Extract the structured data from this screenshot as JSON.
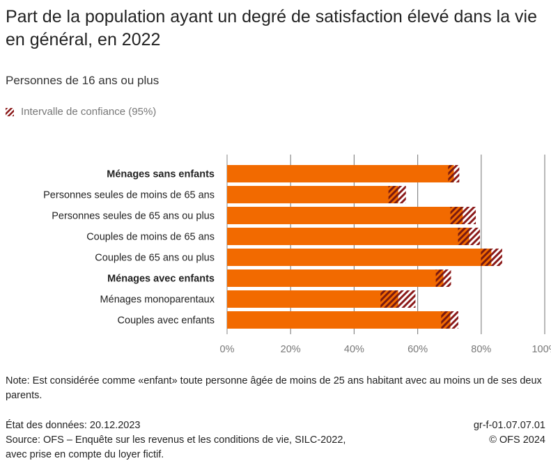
{
  "title": "Part de la population ayant un degré de satisfaction élevé dans la vie en général, en 2022",
  "subtitle": "Personnes de 16 ans ou plus",
  "legend": {
    "label": "Intervalle de confiance (95%)"
  },
  "colors": {
    "bar": "#f26a00",
    "ci": "#8b1a1a"
  },
  "chart_data": {
    "type": "bar",
    "orientation": "horizontal",
    "categories": [
      "Ménages sans enfants",
      "Personnes seules de moins de 65 ans",
      "Personnes seules de 65 ans ou plus",
      "Couples de moins de 65 ans",
      "Couples de 65 ans ou plus",
      "Ménages avec enfants",
      "Ménages monoparentaux",
      "Couples avec enfants"
    ],
    "bold": [
      true,
      false,
      false,
      false,
      false,
      true,
      false,
      false
    ],
    "values": [
      71.4,
      53.9,
      74.2,
      76.2,
      83.2,
      68.1,
      53.9,
      70.3
    ],
    "ci_low": [
      69.6,
      50.8,
      70.3,
      72.7,
      79.9,
      65.7,
      48.3,
      67.4
    ],
    "ci_high": [
      73.1,
      56.3,
      78.3,
      79.6,
      86.6,
      70.5,
      59.3,
      72.8
    ],
    "xlim": [
      0,
      100
    ],
    "xticks": [
      "0%",
      "20%",
      "40%",
      "60%",
      "80%",
      "100%"
    ],
    "grid": true
  },
  "note": "Note: Est considérée comme «enfant» toute personne âgée de moins de 25 ans habitant avec au moins un de ses deux parents.",
  "footer": {
    "date": "État des données: 20.12.2023",
    "source_line1": "Source: OFS – Enquête sur les revenus et les conditions de vie, SILC-2022,",
    "source_line2": "avec prise en compte du loyer fictif.",
    "code": "gr-f-01.07.07.01",
    "copyright": "© OFS 2024"
  }
}
